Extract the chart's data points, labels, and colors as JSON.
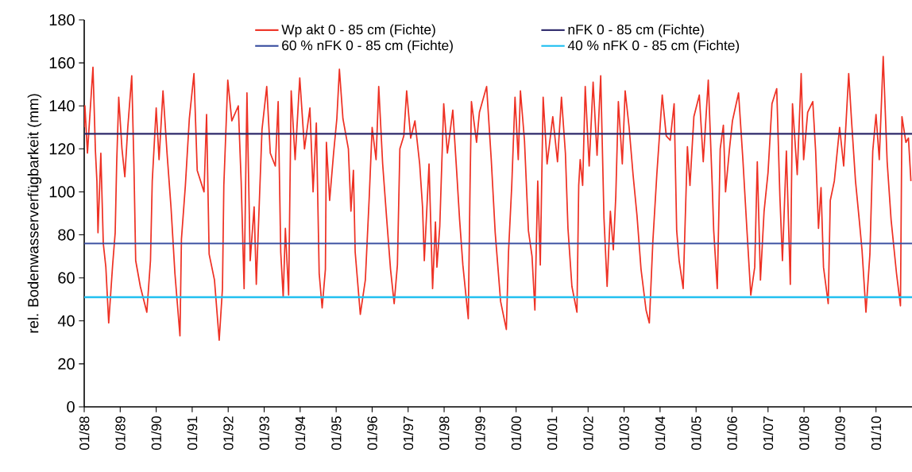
{
  "chart_data": {
    "type": "line",
    "ylabel": "rel. Bodenwasserverfügbarkeit (mm)",
    "xlim": [
      "1988-01",
      "2011-01"
    ],
    "ylim": [
      0,
      180
    ],
    "yticks": [
      0,
      20,
      40,
      60,
      80,
      100,
      120,
      140,
      160,
      180
    ],
    "xticks": [
      {
        "value": "1988-01",
        "label": "01/88"
      },
      {
        "value": "1989-01",
        "label": "01/89"
      },
      {
        "value": "1990-01",
        "label": "01/90"
      },
      {
        "value": "1991-01",
        "label": "01/91"
      },
      {
        "value": "1992-01",
        "label": "01/92"
      },
      {
        "value": "1993-01",
        "label": "01/93"
      },
      {
        "value": "1994-01",
        "label": "01/94"
      },
      {
        "value": "1995-01",
        "label": "01/95"
      },
      {
        "value": "1996-01",
        "label": "01/96"
      },
      {
        "value": "1997-01",
        "label": "01/97"
      },
      {
        "value": "1998-01",
        "label": "01/98"
      },
      {
        "value": "1999-01",
        "label": "01/99"
      },
      {
        "value": "2000-01",
        "label": "01/00"
      },
      {
        "value": "2001-01",
        "label": "01/01"
      },
      {
        "value": "2002-01",
        "label": "01/02"
      },
      {
        "value": "2003-01",
        "label": "01/03"
      },
      {
        "value": "2004-01",
        "label": "01/04"
      },
      {
        "value": "2005-01",
        "label": "01/05"
      },
      {
        "value": "2006-01",
        "label": "01/06"
      },
      {
        "value": "2007-01",
        "label": "01/07"
      },
      {
        "value": "2008-01",
        "label": "01/08"
      },
      {
        "value": "2009-01",
        "label": "01/09"
      },
      {
        "value": "2010-01",
        "label": "01/10"
      }
    ],
    "legend": "top",
    "marker": "none",
    "line_style": "solid",
    "series": [
      {
        "name": "Wp akt 0 - 85 cm (Fichte)",
        "color": "#ee3124",
        "x": [
          "1988-01-01",
          "1988-01-08",
          "1988-02-03",
          "1988-03-30",
          "1988-04-24",
          "1988-05-09",
          "1988-05-20",
          "1988-06-18",
          "1988-07-13",
          "1988-08-08",
          "1988-09-06",
          "1988-10-16",
          "1988-11-11",
          "1988-11-26",
          "1988-12-17",
          "1989-01-19",
          "1989-02-17",
          "1989-03-19",
          "1989-04-28",
          "1989-05-20",
          "1989-06-07",
          "1989-07-24",
          "1989-09-28",
          "1989-11-04",
          "1989-11-22",
          "1990-01-01",
          "1990-01-30",
          "1990-03-11",
          "1990-04-21",
          "1990-05-31",
          "1990-07-10",
          "1990-08-30",
          "1990-09-14",
          "1990-10-24",
          "1990-12-03",
          "1991-01-19",
          "1991-02-21",
          "1991-05-01",
          "1991-05-27",
          "1991-06-22",
          "1991-08-15",
          "1991-10-02",
          "1991-11-04",
          "1991-11-18",
          "1991-12-28",
          "1992-02-07",
          "1992-04-13",
          "1992-05-12",
          "1992-06-11",
          "1992-07-10",
          "1992-08-12",
          "1992-09-21",
          "1992-10-13",
          "1992-12-10",
          "1993-01-27",
          "1993-03-04",
          "1993-04-24",
          "1993-05-23",
          "1993-06-18",
          "1993-07-13",
          "1993-08-04",
          "1993-09-06",
          "1993-10-02",
          "1993-11-11",
          "1993-12-28",
          "1994-02-14",
          "1994-04-10",
          "1994-05-12",
          "1994-06-14",
          "1994-07-13",
          "1994-08-12",
          "1994-09-14",
          "1994-09-24",
          "1994-10-27",
          "1994-12-06",
          "1995-01-08",
          "1995-02-03",
          "1995-03-11",
          "1995-05-05",
          "1995-05-31",
          "1995-06-25",
          "1995-07-13",
          "1995-09-03",
          "1995-10-24",
          "1995-12-03",
          "1996-01-01",
          "1996-02-10",
          "1996-03-08",
          "1996-04-17",
          "1996-05-27",
          "1996-07-06",
          "1996-08-12",
          "1996-09-14",
          "1996-10-09",
          "1996-11-18",
          "1996-12-17",
          "1997-01-27",
          "1997-03-11",
          "1997-04-28",
          "1997-05-27",
          "1997-06-14",
          "1997-08-01",
          "1997-09-06",
          "1997-10-05",
          "1997-10-20",
          "1997-11-18",
          "1997-12-28",
          "1998-02-03",
          "1998-03-30",
          "1998-05-09",
          "1998-06-07",
          "1998-07-10",
          "1998-09-03",
          "1998-09-21",
          "1998-10-05",
          "1998-11-26",
          "1998-12-25",
          "1999-03-08",
          "1999-04-24",
          "1999-06-03",
          "1999-07-28",
          "1999-09-24",
          "1999-10-16",
          "1999-11-18",
          "1999-12-21",
          "2000-01-23",
          "2000-02-14",
          "2000-03-26",
          "2000-05-05",
          "2000-06-11",
          "2000-07-10",
          "2000-08-08",
          "2000-09-03",
          "2000-10-02",
          "2000-11-11",
          "2001-01-08",
          "2001-02-25",
          "2001-04-06",
          "2001-05-16",
          "2001-06-11",
          "2001-07-21",
          "2001-09-10",
          "2001-09-28",
          "2001-10-13",
          "2001-11-07",
          "2001-12-03",
          "2002-01-12",
          "2002-02-21",
          "2002-04-02",
          "2002-05-09",
          "2002-06-11",
          "2002-07-13",
          "2002-08-15",
          "2002-09-14",
          "2002-10-09",
          "2002-11-04",
          "2002-12-14",
          "2003-01-12",
          "2003-02-21",
          "2003-04-02",
          "2003-05-12",
          "2003-06-22",
          "2003-08-12",
          "2003-09-14",
          "2003-10-20",
          "2003-11-29",
          "2004-01-23",
          "2004-03-04",
          "2004-04-13",
          "2004-05-23",
          "2004-06-18",
          "2004-07-13",
          "2004-08-23",
          "2004-10-05",
          "2004-10-31",
          "2004-12-10",
          "2005-02-03",
          "2005-03-15",
          "2005-05-05",
          "2005-06-14",
          "2005-06-29",
          "2005-08-04",
          "2005-09-03",
          "2005-10-05",
          "2005-10-27",
          "2005-12-06",
          "2006-01-05",
          "2006-03-08",
          "2006-04-21",
          "2006-05-31",
          "2006-07-10",
          "2006-08-19",
          "2006-09-14",
          "2006-10-16",
          "2006-11-22",
          "2007-01-01",
          "2007-02-10",
          "2007-03-30",
          "2007-05-01",
          "2007-05-27",
          "2007-07-06",
          "2007-08-15",
          "2007-09-06",
          "2007-10-24",
          "2007-12-03",
          "2007-12-28",
          "2008-02-07",
          "2008-03-30",
          "2008-04-28",
          "2008-05-27",
          "2008-06-22",
          "2008-07-17",
          "2008-09-03",
          "2008-09-24",
          "2008-11-04",
          "2008-12-28",
          "2009-02-07",
          "2009-03-30",
          "2009-04-28",
          "2009-06-07",
          "2009-07-17",
          "2009-08-12",
          "2009-09-21",
          "2009-10-31",
          "2009-11-29",
          "2010-01-01",
          "2010-02-03",
          "2010-03-15",
          "2010-04-24",
          "2010-06-03",
          "2010-07-28",
          "2010-09-06",
          "2010-09-21",
          "2010-10-31",
          "2010-11-26",
          "2010-12-21"
        ],
        "values": [
          130,
          140,
          118,
          158,
          119,
          105,
          81,
          118,
          76,
          65,
          39,
          66,
          81,
          113,
          144,
          120,
          107,
          130,
          154,
          113,
          68,
          56,
          44,
          68,
          105,
          139,
          115,
          147,
          118,
          93,
          62,
          33,
          78,
          103,
          134,
          155,
          110,
          100,
          136,
          71,
          59,
          31,
          55,
          103,
          152,
          133,
          140,
          105,
          55,
          146,
          68,
          93,
          57,
          129,
          149,
          118,
          112,
          142,
          72,
          51,
          83,
          52,
          147,
          115,
          153,
          120,
          139,
          100,
          132,
          62,
          46,
          64,
          123,
          96,
          118,
          134,
          157,
          134,
          120,
          91,
          110,
          72,
          43,
          59,
          98,
          130,
          115,
          149,
          113,
          88,
          64,
          48,
          66,
          120,
          126,
          147,
          125,
          133,
          113,
          93,
          68,
          113,
          55,
          86,
          65,
          84,
          141,
          118,
          138,
          109,
          87,
          66,
          41,
          103,
          142,
          123,
          137,
          149,
          115,
          81,
          49,
          36,
          72,
          103,
          144,
          115,
          147,
          124,
          82,
          70,
          45,
          105,
          66,
          144,
          113,
          135,
          114,
          144,
          118,
          83,
          56,
          44,
          103,
          115,
          103,
          149,
          112,
          151,
          117,
          154,
          88,
          56,
          91,
          73,
          98,
          142,
          113,
          147,
          130,
          108,
          89,
          64,
          45,
          39,
          77,
          108,
          145,
          126,
          124,
          141,
          82,
          68,
          55,
          121,
          103,
          135,
          145,
          114,
          152,
          103,
          82,
          55,
          120,
          131,
          100,
          120,
          133,
          146,
          115,
          83,
          52,
          65,
          114,
          59,
          91,
          109,
          141,
          148,
          98,
          68,
          119,
          57,
          141,
          108,
          155,
          115,
          137,
          142,
          119,
          83,
          102,
          65,
          48,
          96,
          105,
          130,
          112,
          155,
          133,
          105,
          86,
          73,
          44,
          71,
          119,
          136,
          115,
          163,
          114,
          87,
          62,
          47,
          135,
          123,
          125,
          105
        ]
      },
      {
        "name": "nFK 0 - 85 cm (Fichte)",
        "color": "#2e2a6b",
        "x": [
          "1988-01",
          "2011-01"
        ],
        "values": [
          127,
          127
        ]
      },
      {
        "name": "60 % nFK 0 - 85 cm (Fichte)",
        "color": "#3a4fa0",
        "x": [
          "1988-01",
          "2011-01"
        ],
        "values": [
          76,
          76
        ]
      },
      {
        "name": "40 % nFK 0 - 85 cm (Fichte)",
        "color": "#22c0f0",
        "x": [
          "1988-01",
          "2011-01"
        ],
        "values": [
          51,
          51
        ]
      }
    ]
  }
}
